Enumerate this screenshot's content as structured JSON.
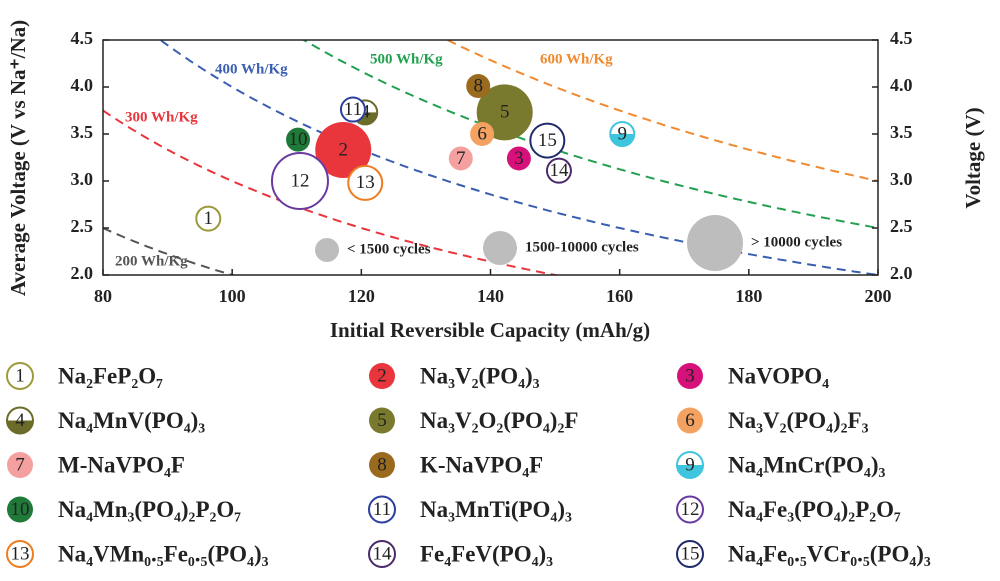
{
  "chart_data": {
    "type": "bubble",
    "x_label": "Initial Reversible Capacity (mAh/g)",
    "y_label": "Average Voltage (V vs Na⁺/Na)",
    "y2_label": "Voltage (V)",
    "xlim": [
      80,
      200
    ],
    "xticks": [
      80,
      100,
      120,
      140,
      160,
      180,
      200
    ],
    "ylim": [
      2,
      4.5
    ],
    "yticks": [
      {
        "value": 2,
        "label": "2.0"
      },
      2.5,
      {
        "value": 3,
        "label": "3.0"
      },
      3.5,
      {
        "value": 4,
        "label": "4.0"
      },
      4.5
    ],
    "y2lim": [
      2,
      4.5
    ],
    "y2ticks": [
      {
        "value": 2,
        "label": "2.0"
      },
      2.5,
      {
        "value": 3,
        "label": "3.0"
      },
      3.5,
      {
        "value": 4,
        "label": "4.0"
      },
      4.5
    ],
    "energy_lines": [
      {
        "value": 200,
        "label": "200 Wh/Kg",
        "color": "#555555"
      },
      {
        "value": 300,
        "label": "300 Wh/Kg",
        "color": "#e8363c"
      },
      {
        "value": 400,
        "label": "400 Wh/Kg",
        "color": "#3a5fb0"
      },
      {
        "value": 500,
        "label": "500 Wh/Kg",
        "color": "#22a050"
      },
      {
        "value": 600,
        "label": "600 Wh/Kg",
        "color": "#f08a30"
      }
    ],
    "size_legend": [
      {
        "label": "< 1500 cycles"
      },
      {
        "label": "1500-10000 cycles"
      },
      {
        "label": "> 10000 cycles"
      }
    ],
    "series": [
      {
        "marker_label": "1",
        "name": "Na₂FeP₂O₇",
        "color": "#9a9a3a",
        "style": "hollow",
        "x": 96.3,
        "y": 2.6,
        "cycles": 0
      },
      {
        "marker_label": "2",
        "name": "Na₃V₂(PO₄)₃",
        "color": "#e8363c",
        "style": "filled",
        "x": 117.2,
        "y": 3.33,
        "cycles": 2
      },
      {
        "marker_label": "3",
        "name": "NaVOPO₄",
        "color": "#d6127a",
        "style": "filled",
        "x": 144.4,
        "y": 3.24,
        "cycles": 0
      },
      {
        "marker_label": "4",
        "name": "Na₄MnV(PO₄)₃",
        "color": "#6b6b2a",
        "style": "half",
        "x": 120.6,
        "y": 3.73,
        "cycles": 0
      },
      {
        "marker_label": "5",
        "name": "Na₃V₂O₂(PO₄)₂F",
        "color": "#7a7a2e",
        "style": "filled",
        "x": 142.2,
        "y": 3.73,
        "cycles": 2
      },
      {
        "marker_label": "6",
        "name": "Na₃V₂(PO₄)₂F₃",
        "color": "#f4a261",
        "style": "filled",
        "x": 138.7,
        "y": 3.5,
        "cycles": 0
      },
      {
        "marker_label": "7",
        "name": "M-NaVPO₄F",
        "color": "#f4a0a0",
        "style": "filled",
        "x": 135.4,
        "y": 3.24,
        "cycles": 0
      },
      {
        "marker_label": "8",
        "name": "K-NaVPO₄F",
        "color": "#9a6a1e",
        "style": "filled",
        "x": 138.1,
        "y": 4.01,
        "cycles": 0
      },
      {
        "marker_label": "9",
        "name": "Na₄MnCr(PO₄)₃",
        "color": "#3fc5dd",
        "style": "half",
        "x": 160.4,
        "y": 3.5,
        "cycles": 0
      },
      {
        "marker_label": "10",
        "name": "Na₄Mn₃(PO₄)₂P₂O₇",
        "color": "#1f7a3a",
        "style": "filled",
        "x": 110.2,
        "y": 3.44,
        "cycles": 0
      },
      {
        "marker_label": "11",
        "name": "Na₃MnTi(PO₄)₃",
        "color": "#2b3fa0",
        "style": "hollow",
        "x": 118.7,
        "y": 3.76,
        "cycles": 0
      },
      {
        "marker_label": "12",
        "name": "Na₄Fe₃(PO₄)₂P₂O₇",
        "color": "#6a3aa0",
        "style": "hollow",
        "x": 110.5,
        "y": 3.0,
        "cycles": 2
      },
      {
        "marker_label": "13",
        "name": "Na₄VMn₀.₅Fe₀.₅(PO₄)₃",
        "color": "#f07c20",
        "style": "hollow",
        "x": 120.6,
        "y": 2.98,
        "cycles": 1
      },
      {
        "marker_label": "14",
        "name": "Fe₄FeV(PO₄)₃",
        "color": "#4a2a6a",
        "style": "hollow",
        "x": 150.6,
        "y": 3.11,
        "cycles": 0
      },
      {
        "marker_label": "15",
        "name": "Na₄Fe₀.₅VCr₀.₅(PO₄)₃",
        "color": "#1f2a6a",
        "style": "hollow",
        "x": 148.8,
        "y": 3.43,
        "cycles": 1
      }
    ]
  }
}
